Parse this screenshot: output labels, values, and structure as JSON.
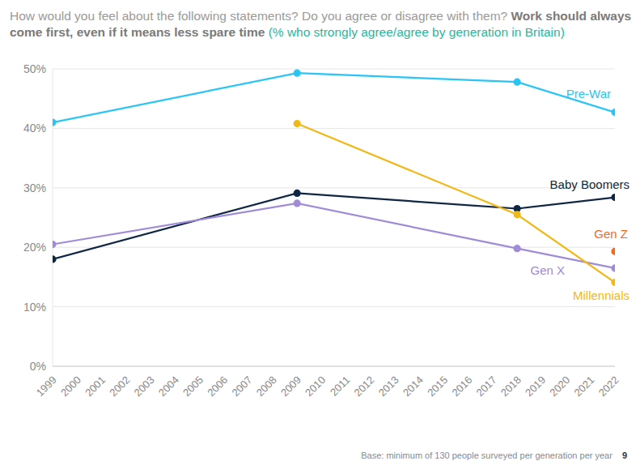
{
  "chart_data": {
    "type": "line",
    "title": "How would you feel about the following statements? Do you agree or disagree with them?",
    "statement": "Work should always come first, even if it means less spare time",
    "subtitle": "(% who strongly agree/agree by generation in Britain)",
    "x": [
      1999,
      2009,
      2018,
      2022
    ],
    "xlim": [
      1999,
      2022
    ],
    "xticks": [
      1999,
      2000,
      2001,
      2002,
      2003,
      2004,
      2005,
      2006,
      2007,
      2008,
      2009,
      2010,
      2011,
      2012,
      2013,
      2014,
      2015,
      2016,
      2017,
      2018,
      2019,
      2020,
      2021,
      2022
    ],
    "ylim": [
      0,
      50
    ],
    "yticks": [
      {
        "value": 0,
        "label": "0%"
      },
      {
        "value": 10,
        "label": "10%"
      },
      {
        "value": 20,
        "label": "20%"
      },
      {
        "value": 30,
        "label": "30%"
      },
      {
        "value": 40,
        "label": "40%"
      },
      {
        "value": 50,
        "label": "50%"
      }
    ],
    "grid": true,
    "marker": "circle",
    "series": [
      {
        "name": "Pre-War",
        "color": "#29c5f6",
        "values": [
          41,
          49.3,
          47.8,
          42.7
        ]
      },
      {
        "name": "Baby Boomers",
        "color": "#0f2744",
        "values": [
          18,
          29.1,
          26.5,
          28.4
        ]
      },
      {
        "name": "Gen X",
        "color": "#a08bd6",
        "values": [
          20.5,
          27.4,
          19.8,
          16.5
        ]
      },
      {
        "name": "Millennials",
        "color": "#f2b817",
        "values": [
          null,
          40.8,
          25.5,
          14.1
        ]
      },
      {
        "name": "Gen Z",
        "color": "#f26a21",
        "values": [
          null,
          null,
          null,
          19.3
        ]
      }
    ],
    "annotations": [
      "Base: minimum of 130 people surveyed per generation per year",
      "9"
    ]
  }
}
